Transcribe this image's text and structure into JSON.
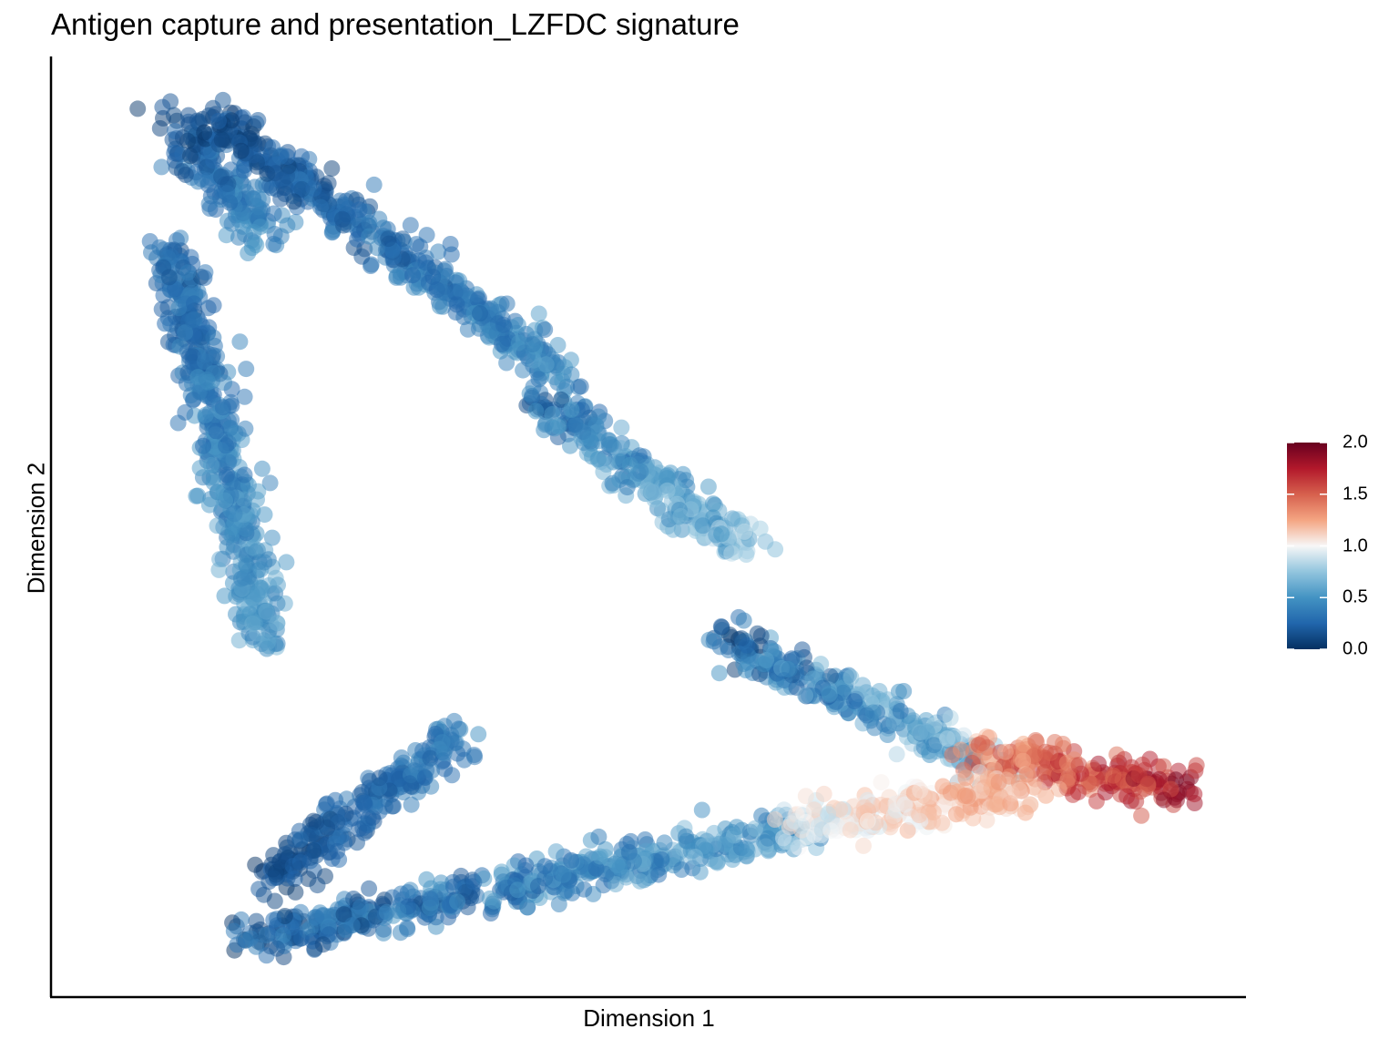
{
  "chart_data": {
    "type": "scatter",
    "title": "Antigen capture and presentation_LZFDC signature",
    "xlabel": "Dimension 1",
    "ylabel": "Dimension 2",
    "xlim": [
      0,
      100
    ],
    "ylim": [
      0,
      100
    ],
    "x_ticks": "none",
    "y_ticks": "none",
    "grid": false,
    "legend": {
      "type": "colorbar",
      "position": "right",
      "range": [
        0.0,
        2.0
      ],
      "ticks": [
        {
          "value": 2.0,
          "label": "2.0"
        },
        {
          "value": 1.5,
          "label": "1.5"
        },
        {
          "value": 1.0,
          "label": "1.0"
        },
        {
          "value": 0.5,
          "label": "0.5"
        },
        {
          "value": 0.0,
          "label": "0.0"
        }
      ],
      "colormap": "RdBu (reversed)",
      "colors": [
        "#053061",
        "#2166ac",
        "#4393c3",
        "#92c5de",
        "#f7f7f7",
        "#f4a582",
        "#d6604d",
        "#b2182b",
        "#67001f"
      ]
    },
    "structure": {
      "description_of_trajectories": "three branches meeting near a central region",
      "segments": [
        {
          "from": [
            10,
            94
          ],
          "to": [
            18,
            81
          ],
          "value_range": [
            0.0,
            0.6
          ]
        },
        {
          "from": [
            10,
            80
          ],
          "to": [
            18,
            38
          ],
          "value_range": [
            0.1,
            0.7
          ]
        },
        {
          "from": [
            13,
            94
          ],
          "to": [
            43,
            66
          ],
          "value_range": [
            0.0,
            0.6
          ]
        },
        {
          "from": [
            40,
            64
          ],
          "to": [
            58,
            48
          ],
          "value_range": [
            0.1,
            0.9
          ]
        },
        {
          "from": [
            56,
            38
          ],
          "to": [
            80,
            24
          ],
          "value_range": [
            0.0,
            1.0
          ]
        },
        {
          "from": [
            77,
            26
          ],
          "to": [
            95,
            22
          ],
          "value_range": [
            1.1,
            2.0
          ]
        },
        {
          "from": [
            16,
            6
          ],
          "to": [
            64,
            18
          ],
          "value_range": [
            0.0,
            0.8
          ]
        },
        {
          "from": [
            62,
            18
          ],
          "to": [
            82,
            22
          ],
          "value_range": [
            0.8,
            1.4
          ]
        },
        {
          "from": [
            18,
            12
          ],
          "to": [
            34,
            28
          ],
          "value_range": [
            0.0,
            0.5
          ]
        }
      ],
      "n_points_approx": 3000
    }
  }
}
